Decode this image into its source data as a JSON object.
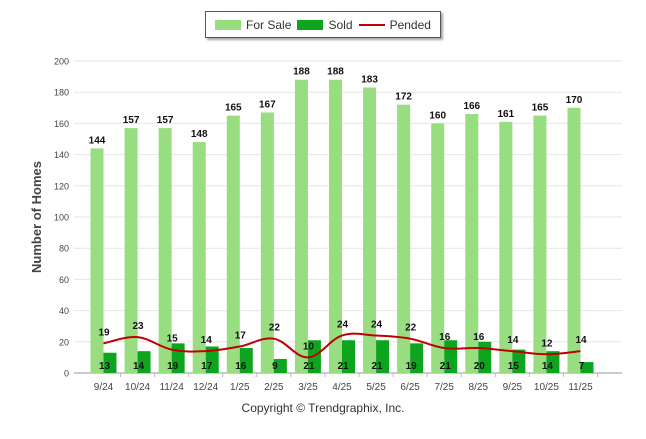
{
  "chart_data": {
    "type": "bar",
    "categories": [
      "9/24",
      "10/24",
      "11/24",
      "12/24",
      "1/25",
      "2/25",
      "3/25",
      "4/25",
      "5/25",
      "6/25",
      "7/25",
      "8/25",
      "9/25",
      "10/25",
      "11/25"
    ],
    "series": [
      {
        "name": "For Sale",
        "kind": "bar",
        "color": "#98dd80",
        "values": [
          144,
          157,
          157,
          148,
          165,
          167,
          188,
          188,
          183,
          172,
          160,
          166,
          161,
          165,
          170
        ]
      },
      {
        "name": "Sold",
        "kind": "bar",
        "color": "#0ea51e",
        "values": [
          13,
          14,
          19,
          17,
          16,
          9,
          21,
          21,
          21,
          19,
          21,
          20,
          15,
          14,
          7
        ]
      },
      {
        "name": "Pended",
        "kind": "line",
        "color": "#c00000",
        "values": [
          19,
          23,
          15,
          14,
          17,
          22,
          10,
          24,
          24,
          22,
          16,
          16,
          14,
          12,
          14
        ]
      }
    ],
    "title": "",
    "xlabel": "",
    "ylabel": "Number of Homes",
    "ylim": [
      0,
      200
    ],
    "yticks": [
      "0",
      "20",
      "40",
      "60",
      "80",
      "100",
      "120",
      "140",
      "160",
      "180",
      "200"
    ],
    "legend_position": "top-center",
    "grid": true
  },
  "footer": {
    "copyright": "Copyright © Trendgraphix, Inc."
  }
}
